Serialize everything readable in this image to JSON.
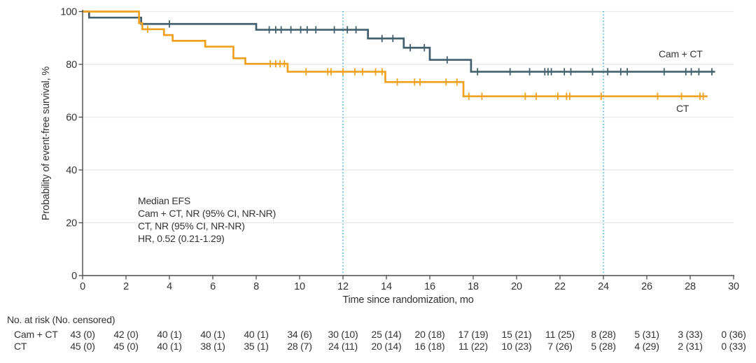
{
  "colors": {
    "cam_ct": "#44606C",
    "ct": "#EFA11F",
    "reference": "#3BAEDD",
    "grid": "#E8E8E8",
    "axis": "#4A4A4A",
    "text": "#333333"
  },
  "chart_data": {
    "type": "line",
    "subtype": "kaplan-meier-step",
    "x_axis": {
      "label": "Time since randomization, mo",
      "ticks": [
        0,
        2,
        4,
        6,
        8,
        10,
        12,
        14,
        16,
        18,
        20,
        22,
        24,
        26,
        28,
        30
      ],
      "range": [
        0,
        30
      ]
    },
    "y_axis": {
      "label": "Probability of event-free survival, %",
      "ticks": [
        0,
        20,
        40,
        60,
        80,
        100
      ],
      "range": [
        0,
        100
      ]
    },
    "grid": "horizontal",
    "reference_lines": {
      "x_values": [
        12,
        24
      ],
      "style": "dotted"
    },
    "series": [
      {
        "name": "Cam + CT",
        "color": "#44606C",
        "steps": [
          [
            0,
            100
          ],
          [
            0.3,
            97.7
          ],
          [
            2.7,
            95.3
          ],
          [
            8.0,
            93.1
          ],
          [
            13.15,
            89.8
          ],
          [
            14.8,
            86.3
          ],
          [
            16.0,
            81.7
          ],
          [
            17.9,
            77.2
          ]
        ],
        "end_month": 29.15,
        "censor_months": [
          4.0,
          8.6,
          8.9,
          9.15,
          9.6,
          10.05,
          10.35,
          10.75,
          11.6,
          12.2,
          12.6,
          13.8,
          14.3,
          15.1,
          15.75,
          16.8,
          18.2,
          19.7,
          20.6,
          21.3,
          21.45,
          21.6,
          22.2,
          22.5,
          23.5,
          24.2,
          24.8,
          25.1,
          26.8,
          27.8,
          28.05,
          28.4,
          29.0
        ]
      },
      {
        "name": "CT",
        "color": "#EFA11F",
        "steps": [
          [
            0,
            100
          ],
          [
            2.6,
            95.6
          ],
          [
            2.75,
            93.3
          ],
          [
            3.75,
            91.1
          ],
          [
            4.15,
            88.9
          ],
          [
            5.65,
            86.7
          ],
          [
            6.95,
            82.3
          ],
          [
            7.5,
            80.2
          ],
          [
            9.45,
            77.2
          ],
          [
            13.95,
            73.3
          ],
          [
            17.55,
            67.9
          ]
        ],
        "end_month": 28.8,
        "censor_months": [
          3.0,
          8.65,
          8.9,
          9.1,
          9.3,
          10.3,
          11.3,
          11.45,
          12.0,
          12.55,
          12.9,
          13.5,
          13.8,
          14.5,
          15.3,
          15.55,
          16.75,
          17.25,
          17.8,
          18.4,
          20.4,
          20.9,
          21.9,
          22.3,
          22.45,
          23.9,
          26.5,
          27.6,
          28.45,
          28.6
        ]
      }
    ],
    "annotation": {
      "lines": [
        "Median EFS",
        "Cam + CT, NR (95% CI, NR-NR)",
        "CT, NR (95% CI, NR-NR)",
        "HR, 0.52 (0.21-1.29)"
      ]
    }
  },
  "risk_table": {
    "header": "No. at risk (No. censored)",
    "rows": [
      {
        "label": "Cam + CT",
        "values": [
          "43 (0)",
          "42 (0)",
          "40 (1)",
          "40 (1)",
          "40 (1)",
          "34 (6)",
          "30 (10)",
          "25 (14)",
          "20 (18)",
          "17 (19)",
          "15 (21)",
          "11 (25)",
          "8 (28)",
          "5 (31)",
          "3 (33)",
          "0 (36)"
        ]
      },
      {
        "label": "CT",
        "values": [
          "45 (0)",
          "45 (0)",
          "40 (1)",
          "38 (1)",
          "35 (1)",
          "28 (7)",
          "24 (11)",
          "20 (14)",
          "16 (18)",
          "11 (22)",
          "10 (23)",
          "7 (26)",
          "5 (28)",
          "4 (29)",
          "2 (31)",
          "0 (33)"
        ]
      }
    ]
  }
}
